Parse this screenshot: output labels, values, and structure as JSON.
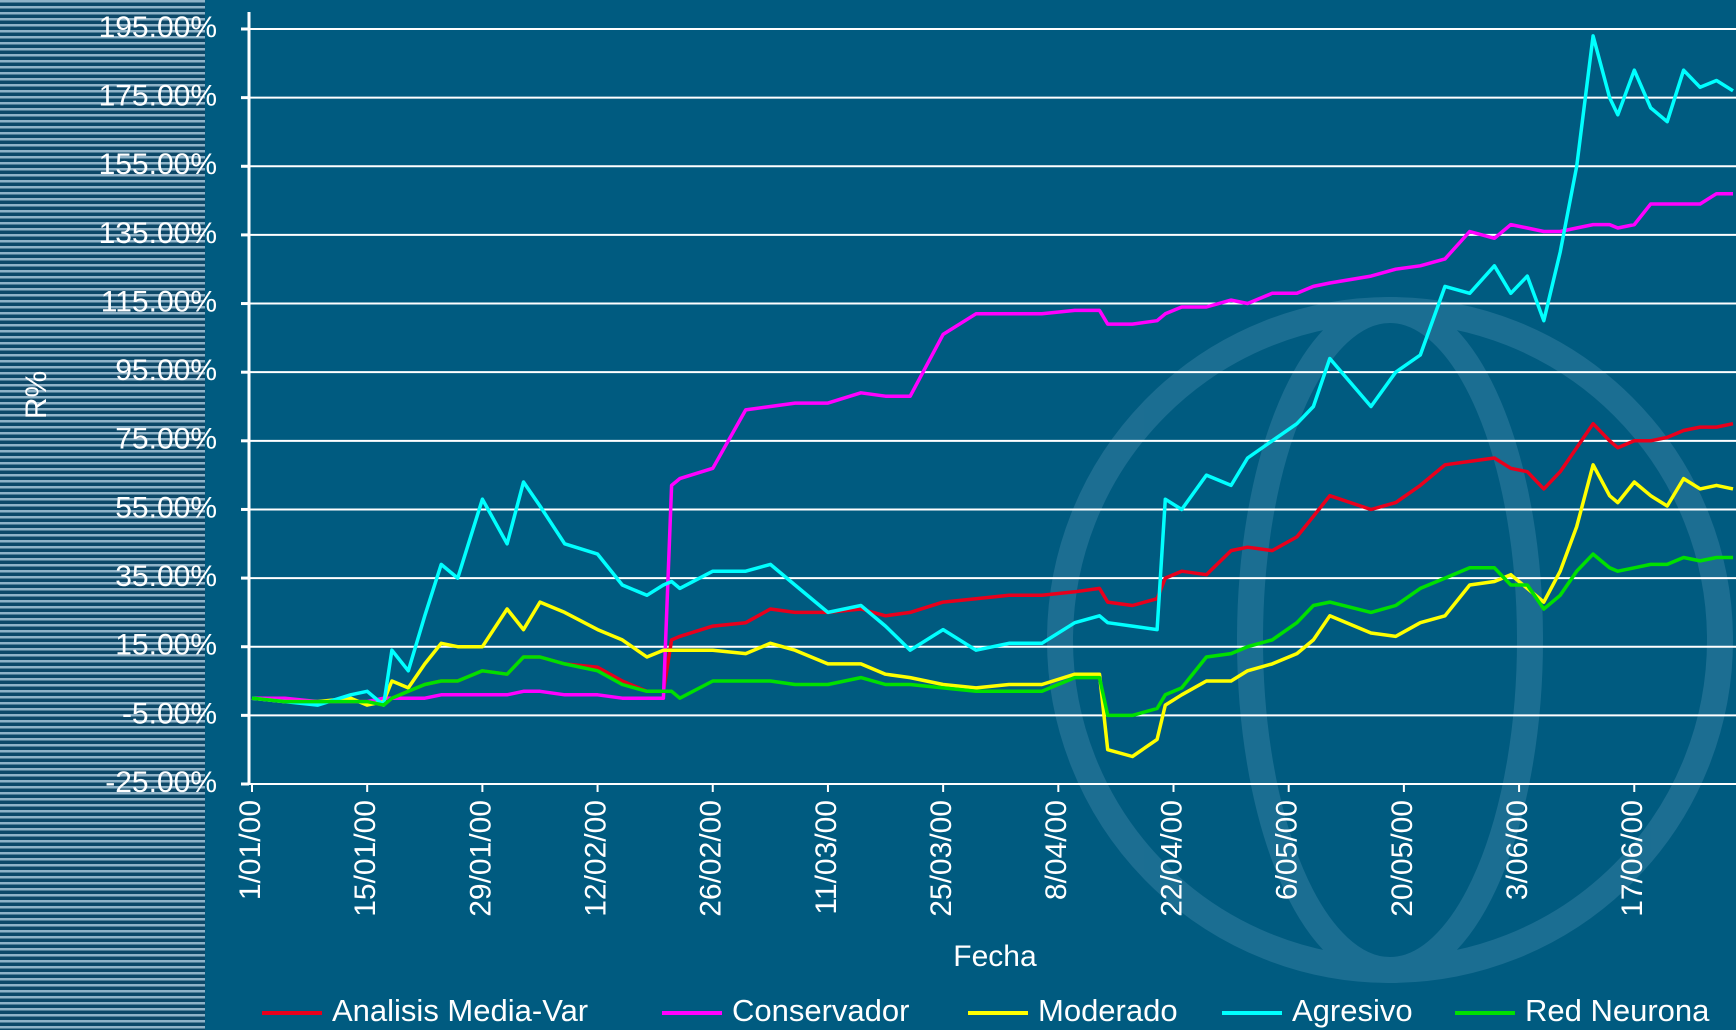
{
  "chart_data": {
    "type": "line",
    "x_label": "Fecha",
    "y_label": "R%",
    "x": [
      "1/01/00",
      "5/01/00",
      "9/01/00",
      "13/01/00",
      "15/01/00",
      "17/01/00",
      "18/01/00",
      "20/01/00",
      "22/01/00",
      "24/01/00",
      "26/01/00",
      "29/01/00",
      "1/02/00",
      "3/02/00",
      "5/02/00",
      "8/02/00",
      "12/02/00",
      "15/02/00",
      "18/02/00",
      "20/02/00",
      "21/02/00",
      "22/02/00",
      "26/02/00",
      "1/03/00",
      "4/03/00",
      "7/03/00",
      "11/03/00",
      "15/03/00",
      "18/03/00",
      "21/03/00",
      "25/03/00",
      "29/03/00",
      "2/04/00",
      "6/04/00",
      "10/04/00",
      "13/04/00",
      "14/04/00",
      "17/04/00",
      "20/04/00",
      "21/04/00",
      "23/04/00",
      "26/04/00",
      "29/04/00",
      "1/05/00",
      "4/05/00",
      "7/05/00",
      "9/05/00",
      "11/05/00",
      "16/05/00",
      "19/05/00",
      "22/05/00",
      "25/05/00",
      "28/05/00",
      "31/05/00",
      "2/06/00",
      "4/06/00",
      "6/06/00",
      "8/06/00",
      "10/06/00",
      "12/06/00",
      "14/06/00",
      "15/06/00",
      "17/06/00",
      "19/06/00",
      "21/06/00",
      "23/06/00",
      "25/06/00",
      "27/06/00",
      "29/06/00"
    ],
    "xlim": [
      "1/01/00",
      "29/06/00"
    ],
    "xticks": [
      "1/01/00",
      "15/01/00",
      "29/01/00",
      "12/02/00",
      "26/02/00",
      "11/03/00",
      "25/03/00",
      "8/04/00",
      "22/04/00",
      "6/05/00",
      "20/05/00",
      "3/06/00",
      "17/06/00"
    ],
    "ylim": [
      -25,
      195
    ],
    "yticks": [
      {
        "value": -25,
        "label": "-25.00%"
      },
      {
        "value": -5,
        "label": "-5.00%"
      },
      {
        "value": 15,
        "label": "15.00%"
      },
      {
        "value": 35,
        "label": "35.00%"
      },
      {
        "value": 55,
        "label": "55.00%"
      },
      {
        "value": 75,
        "label": "75.00%"
      },
      {
        "value": 95,
        "label": "95.00%"
      },
      {
        "value": 115,
        "label": "115.00%"
      },
      {
        "value": 135,
        "label": "135.00%"
      },
      {
        "value": 155,
        "label": "155.00%"
      },
      {
        "value": 175,
        "label": "175.00%"
      },
      {
        "value": 195,
        "label": "195.00%"
      }
    ],
    "grid": true,
    "legend": "bottom",
    "series": [
      {
        "name": "Analisis Media-Var",
        "color": "#e8001c",
        "values": [
          0,
          -1,
          -1,
          -1,
          -1,
          -2,
          0,
          2,
          4,
          5,
          5,
          8,
          7,
          12,
          12,
          10,
          9,
          5,
          2,
          2,
          17,
          18,
          21,
          22,
          26,
          25,
          25,
          26,
          24,
          25,
          28,
          29,
          30,
          30,
          31,
          32,
          28,
          27,
          29,
          35,
          37,
          36,
          43,
          44,
          43,
          47,
          53,
          59,
          55,
          57,
          62,
          68,
          69,
          70,
          67,
          66,
          61,
          66,
          73,
          80,
          75,
          73,
          75,
          75,
          76,
          78,
          79,
          79,
          80
        ]
      },
      {
        "name": "Conservador",
        "color": "#ff00ff",
        "values": [
          0,
          0,
          -1,
          -1,
          -1,
          0,
          0,
          0,
          0,
          1,
          1,
          1,
          1,
          2,
          2,
          1,
          1,
          0,
          0,
          0,
          62,
          64,
          67,
          84,
          85,
          86,
          86,
          89,
          88,
          88,
          106,
          112,
          112,
          112,
          113,
          113,
          109,
          109,
          110,
          112,
          114,
          114,
          116,
          115,
          118,
          118,
          120,
          121,
          123,
          125,
          126,
          128,
          136,
          134,
          138,
          137,
          136,
          136,
          137,
          138,
          138,
          137,
          138,
          144,
          144,
          144,
          144,
          147,
          147
        ]
      },
      {
        "name": "Moderado",
        "color": "#ffff00",
        "values": [
          0,
          -1,
          -1,
          0,
          -2,
          -1,
          5,
          3,
          10,
          16,
          15,
          15,
          26,
          20,
          28,
          25,
          20,
          17,
          12,
          14,
          14,
          14,
          14,
          13,
          16,
          14,
          10,
          10,
          7,
          6,
          4,
          3,
          4,
          4,
          7,
          7,
          -15,
          -17,
          -12,
          -2,
          1,
          5,
          5,
          8,
          10,
          13,
          17,
          24,
          19,
          18,
          22,
          24,
          33,
          34,
          36,
          32,
          28,
          37,
          50,
          68,
          59,
          57,
          63,
          59,
          56,
          64,
          61,
          62,
          61
        ]
      },
      {
        "name": "Agresivo",
        "color": "#00ffff",
        "values": [
          0,
          -1,
          -2,
          1,
          2,
          -2,
          14,
          8,
          24,
          39,
          35,
          58,
          45,
          63,
          56,
          45,
          42,
          33,
          30,
          33,
          34,
          32,
          37,
          37,
          39,
          33,
          25,
          27,
          21,
          14,
          20,
          14,
          16,
          16,
          22,
          24,
          22,
          21,
          20,
          58,
          55,
          65,
          62,
          70,
          75,
          80,
          85,
          99,
          85,
          95,
          100,
          120,
          118,
          126,
          118,
          123,
          110,
          130,
          155,
          193,
          175,
          170,
          183,
          172,
          168,
          183,
          178,
          180,
          177
        ]
      },
      {
        "name": "Red Neurona",
        "color": "#00e000",
        "values": [
          0,
          -1,
          -1,
          -1,
          -1,
          -2,
          0,
          2,
          4,
          5,
          5,
          8,
          7,
          12,
          12,
          10,
          8,
          4,
          2,
          2,
          2,
          0,
          5,
          5,
          5,
          4,
          4,
          6,
          4,
          4,
          3,
          2,
          2,
          2,
          6,
          6,
          -5,
          -5,
          -3,
          1,
          3,
          12,
          13,
          15,
          17,
          22,
          27,
          28,
          25,
          27,
          32,
          35,
          38,
          38,
          33,
          33,
          26,
          30,
          37,
          42,
          38,
          37,
          38,
          39,
          39,
          41,
          40,
          41,
          41
        ]
      }
    ]
  }
}
